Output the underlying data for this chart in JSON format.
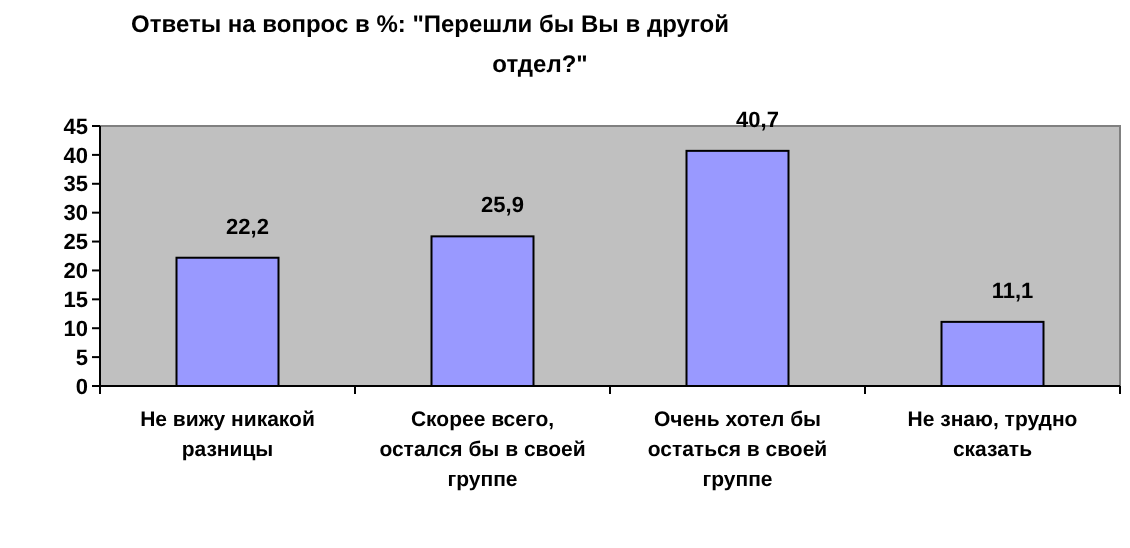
{
  "chart_data": {
    "type": "bar",
    "title": "Ответы на вопрос в %:  \"Перешли бы Вы в другой отдел?\"",
    "categories": [
      "Не вижу никакой разницы",
      "Скорее всего, остался бы в своей группе",
      "Очень хотел  бы остаться в своей группе",
      "Не знаю, трудно сказать"
    ],
    "values": [
      22.2,
      25.9,
      40.7,
      11.1
    ],
    "value_labels": [
      "22,2",
      "25,9",
      "40,7",
      "11,1"
    ],
    "color": "#9999ff",
    "ylim": [
      0,
      45
    ],
    "yticks": [
      0,
      5,
      10,
      15,
      20,
      25,
      30,
      35,
      40,
      45
    ],
    "grid": false
  }
}
